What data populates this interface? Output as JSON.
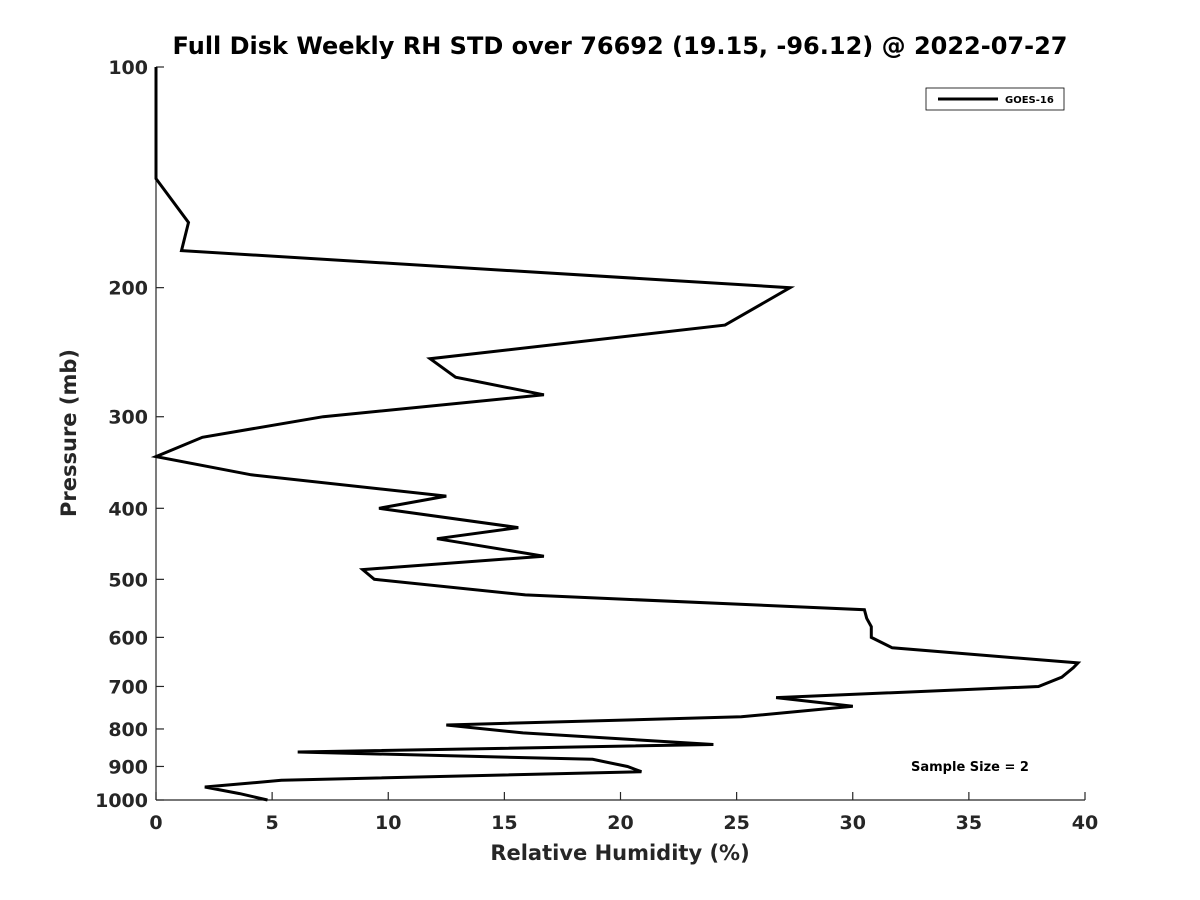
{
  "chart_data": {
    "type": "line",
    "title": "Full Disk Weekly RH STD over 76692 (19.15, -96.12) @ 2022-07-27",
    "xlabel": "Relative Humidity (%)",
    "ylabel": "Pressure (mb)",
    "xlim": [
      0,
      40
    ],
    "ylim": [
      100,
      1000
    ],
    "y_scale": "log",
    "y_reversed": true,
    "x_ticks": [
      0,
      5,
      10,
      15,
      20,
      25,
      30,
      35,
      40
    ],
    "y_ticks": [
      100,
      200,
      300,
      400,
      500,
      600,
      700,
      800,
      900,
      1000
    ],
    "grid": false,
    "legend_position": "top-right",
    "series": [
      {
        "name": "GOES-16",
        "color": "#000000",
        "x": [
          0,
          0,
          1.4,
          1.1,
          27.3,
          24.5,
          11.8,
          12.9,
          16.7,
          7.2,
          2.0,
          0,
          4.1,
          12.5,
          9.6,
          15.6,
          12.1,
          16.7,
          8.9,
          9.4,
          15.9,
          30.5,
          30.6,
          30.8,
          30.8,
          31.7,
          39.7,
          39.5,
          39.0,
          38.0,
          26.7,
          30.0,
          25.2,
          12.5,
          15.8,
          24.0,
          6.1,
          18.8,
          20.3,
          20.9,
          5.4,
          2.1,
          3.6,
          4.8
        ],
        "y": [
          100,
          142,
          163,
          178,
          200,
          225,
          250,
          265,
          280,
          300,
          320,
          340,
          360,
          385,
          400,
          425,
          440,
          465,
          485,
          500,
          525,
          550,
          565,
          580,
          600,
          620,
          650,
          660,
          680,
          700,
          725,
          745,
          770,
          790,
          810,
          840,
          860,
          880,
          900,
          915,
          940,
          960,
          980,
          1000
        ]
      }
    ],
    "annotation": "Sample Size = 2"
  }
}
